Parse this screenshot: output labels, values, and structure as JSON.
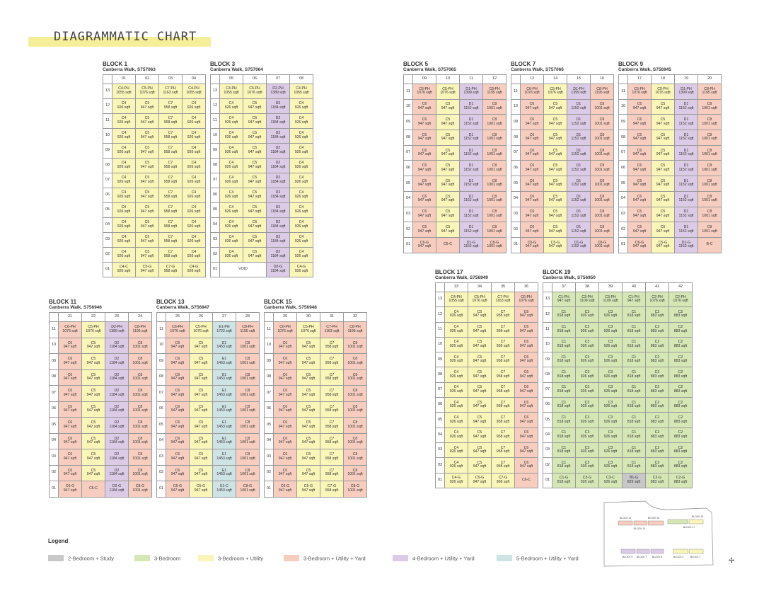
{
  "title": "DIAGRAMMATIC CHART",
  "unit_types": {
    "C4-PH": [
      "1055 sqft",
      "yellow"
    ],
    "C5-PH": [
      "1076 sqft",
      "yellow"
    ],
    "C7-PH": [
      "1163 sqft",
      "yellow"
    ],
    "C4": [
      "926 sqft",
      "yellow"
    ],
    "C5": [
      "947 sqft",
      "yellow"
    ],
    "C7": [
      "958 sqft",
      "yellow"
    ],
    "C4-C": [
      "926 sqft",
      "yellow"
    ],
    "C4-G": [
      "926 sqft",
      "yellow"
    ],
    "C5-G": [
      "947 sqft",
      "yellow"
    ],
    "C7-G": [
      "958 sqft",
      "yellow"
    ],
    "D2-PH": [
      "1389 sqft",
      "purple"
    ],
    "D2": [
      "1184 sqft",
      "purple"
    ],
    "D2-G": [
      "1184 sqft",
      "purple"
    ],
    "D1-PH": [
      "1399 sqft",
      "purple"
    ],
    "D1": [
      "1152 sqft",
      "purple"
    ],
    "D1-G": [
      "1152 sqft",
      "purple"
    ],
    "C6-PH": [
      "1076 sqft",
      "pink"
    ],
    "C8-PH": [
      "1195 sqft",
      "pink"
    ],
    "C6": [
      "947 sqft",
      "pink"
    ],
    "C8": [
      "1001 sqft",
      "pink"
    ],
    "C6-G": [
      "947 sqft",
      "pink"
    ],
    "C8-G": [
      "1001 sqft",
      "pink"
    ],
    "C8-C": [
      "1001 sqft",
      "pink"
    ],
    "C7-PH*": [
      "1163 sqft",
      "pink"
    ],
    "E1-PH": [
      "1722 sqft",
      "teal"
    ],
    "E1": [
      "1453 sqft",
      "teal"
    ],
    "E1-C": [
      "1453 sqft",
      "teal"
    ],
    "C1-PH": [
      "947 sqft",
      "green"
    ],
    "C3-PH": [
      "1109 sqft",
      "green"
    ],
    "C2-PH": [
      "1076 sqft",
      "green"
    ],
    "C1": [
      "818 sqft",
      "green"
    ],
    "C3": [
      "926 sqft",
      "green"
    ],
    "C2": [
      "883 sqft",
      "green"
    ],
    "C1-G": [
      "818 sqft",
      "green"
    ],
    "C3-G": [
      "926 sqft",
      "green"
    ],
    "C3-C": [
      "926 sqft",
      "green"
    ],
    "C2-G": [
      "883 sqft",
      "green"
    ],
    "B1-G": [
      "829 sqft",
      "grey"
    ]
  },
  "blocks": [
    {
      "id": "block-1",
      "name": "BLOCK 1",
      "address": "Canberra Walk, S757063",
      "units": [
        "01",
        "02",
        "03",
        "04"
      ],
      "floors": [
        "13",
        "12",
        "11",
        "10",
        "09",
        "08",
        "07",
        "06",
        "05",
        "04",
        "03",
        "02",
        "01"
      ],
      "top": [
        "C4-PH",
        "C5-PH",
        "C7-PH",
        "C4-PH"
      ],
      "typ": [
        "C4",
        "C5",
        "C7",
        "C4"
      ],
      "ground": [
        "C4-C",
        "C5-G",
        "C7-G",
        "C4-G"
      ]
    },
    {
      "id": "block-3",
      "name": "BLOCK 3",
      "address": "Canberra Walk, S757064",
      "units": [
        "05",
        "06",
        "07",
        "08"
      ],
      "floors": [
        "13",
        "12",
        "11",
        "10",
        "09",
        "08",
        "07",
        "06",
        "05",
        "04",
        "03",
        "02",
        "01"
      ],
      "top": [
        "C4-PH",
        "C5-PH",
        "D2-PH",
        "C4-PH"
      ],
      "typ": [
        "C4",
        "C5",
        "D2",
        "C4"
      ],
      "ground": [
        "VOID",
        "",
        "D2-G",
        "C4-G"
      ]
    },
    {
      "id": "block-5",
      "name": "BLOCK 5",
      "address": "Canberra Walk, S757065",
      "units": [
        "09",
        "10",
        "11",
        "12"
      ],
      "floors": [
        "11",
        "10",
        "09",
        "08",
        "07",
        "06",
        "05",
        "04",
        "03",
        "02",
        "01"
      ],
      "top": [
        "C6-PH",
        "C5-PH",
        "D1-PH",
        "C8-PH"
      ],
      "typ": [
        "C6",
        "C5",
        "D1",
        "C8"
      ],
      "ground": [
        "C6-G",
        "C5-C",
        "D1-G",
        "C8-G"
      ]
    },
    {
      "id": "block-7",
      "name": "BLOCK 7",
      "address": "Canberra Walk, S757066",
      "units": [
        "13",
        "14",
        "15",
        "16"
      ],
      "floors": [
        "11",
        "10",
        "09",
        "08",
        "07",
        "06",
        "05",
        "04",
        "03",
        "02",
        "01"
      ],
      "top": [
        "C6-PH",
        "C5-PH",
        "D1-PH",
        "C8-PH"
      ],
      "typ": [
        "C6",
        "C5",
        "D1",
        "C8"
      ],
      "ground": [
        "C6-G",
        "C5-G",
        "D1-G",
        "C8-G"
      ]
    },
    {
      "id": "block-9",
      "name": "BLOCK 9",
      "address": "Canberra Walk, S756945",
      "units": [
        "17",
        "18",
        "19",
        "20"
      ],
      "floors": [
        "11",
        "10",
        "09",
        "08",
        "07",
        "06",
        "05",
        "04",
        "03",
        "02",
        "01"
      ],
      "top": [
        "C6-PH",
        "C5-PH",
        "D1-PH",
        "C8-PH"
      ],
      "typ": [
        "C6",
        "C5",
        "D1",
        "C8"
      ],
      "ground": [
        "C6-G",
        "C5-G",
        "D1-G",
        "B-C"
      ]
    },
    {
      "id": "block-11",
      "name": "BLOCK 11",
      "address": "Canberra Walk, S756946",
      "units": [
        "21",
        "22",
        "23",
        "24"
      ],
      "floors": [
        "11",
        "10",
        "09",
        "08",
        "07",
        "06",
        "05",
        "04",
        "03",
        "02",
        "01"
      ],
      "top": [
        "C6-PH",
        "C5-PH",
        "D2-PH",
        "C8-PH"
      ],
      "typ": [
        "C6",
        "C5",
        "D2",
        "C8"
      ],
      "ground": [
        "C6-G",
        "C5-C",
        "D2-G",
        "C8-G"
      ]
    },
    {
      "id": "block-13",
      "name": "BLOCK 13",
      "address": "Canberra Walk, S756947",
      "units": [
        "25",
        "26",
        "27",
        "28"
      ],
      "floors": [
        "11",
        "10",
        "09",
        "08",
        "07",
        "06",
        "05",
        "04",
        "03",
        "02",
        "01"
      ],
      "top": [
        "C6-PH",
        "C5-PH",
        "E1-PH",
        "C8-PH"
      ],
      "typ": [
        "C6",
        "C5",
        "E1",
        "C8"
      ],
      "ground": [
        "C6-G",
        "C5-G",
        "E1-C",
        "C8-G"
      ]
    },
    {
      "id": "block-15",
      "name": "BLOCK 15",
      "address": "Canberra Walk, S756948",
      "units": [
        "29",
        "30",
        "31",
        "32"
      ],
      "floors": [
        "11",
        "10",
        "09",
        "08",
        "07",
        "06",
        "05",
        "04",
        "03",
        "02",
        "01"
      ],
      "top": [
        "C6-PH",
        "C5-PH",
        "C7-PH*",
        "C8-PH"
      ],
      "typ": [
        "C6",
        "C5",
        "C7",
        "C8"
      ],
      "ground": [
        "C6-G",
        "C5-G",
        "C7-G",
        "C8-G"
      ]
    },
    {
      "id": "block-17",
      "name": "BLOCK 17",
      "address": "Canberra Walk, S756949",
      "units": [
        "33",
        "34",
        "35",
        "36"
      ],
      "floors": [
        "13",
        "12",
        "11",
        "10",
        "09",
        "08",
        "07",
        "06",
        "05",
        "04",
        "03",
        "02",
        "01"
      ],
      "top": [
        "C4-PH",
        "C5-PH",
        "C7-PH",
        "C6-PH"
      ],
      "typ": [
        "C4",
        "C5",
        "C7",
        "C6"
      ],
      "ground": [
        "C4-G",
        "C5-G",
        "C7-G",
        "C6-C"
      ]
    },
    {
      "id": "block-19",
      "name": "BLOCK 19",
      "address": "Canberra Walk, S756950",
      "units": [
        "37",
        "38",
        "39",
        "40",
        "41",
        "42"
      ],
      "floors": [
        "13",
        "12",
        "11",
        "10",
        "09",
        "08",
        "07",
        "06",
        "05",
        "04",
        "03",
        "02",
        "01"
      ],
      "top": [
        "C1-PH",
        "C3-PH",
        "C3-PH",
        "C1-PH",
        "C2-PH",
        "C2-PH"
      ],
      "typ": [
        "C1",
        "C3",
        "C3",
        "C1",
        "C2",
        "C2"
      ],
      "ground": [
        "C1-G",
        "C3-G",
        "C3-C",
        "B1-G",
        "C2-G",
        "C2-G"
      ]
    }
  ],
  "legend": {
    "title": "Legend",
    "items": [
      {
        "label": "2-Bedroom + Study",
        "color": "#c8c8c8"
      },
      {
        "label": "3-Bedroom",
        "color": "#d6e7b6"
      },
      {
        "label": "3-Bedroom + Utility",
        "color": "#faf5b8"
      },
      {
        "label": "3-Bedroom + Utility + Yard",
        "color": "#f7cdbf"
      },
      {
        "label": "4-Bedroom + Utility + Yard",
        "color": "#dccbe6"
      },
      {
        "label": "5-Bedroom + Utility + Yard",
        "color": "#cde3e4"
      }
    ]
  },
  "keyplan": {
    "labels": [
      "BLOCK 11",
      "BLOCK 15",
      "BLOCK 13",
      "BLOCK 19",
      "BLOCK 17",
      "BLOCK 9",
      "BLOCK 7",
      "BLOCK 5",
      "BLOCK 3",
      "BLOCK 1"
    ]
  },
  "north_mark": "N"
}
